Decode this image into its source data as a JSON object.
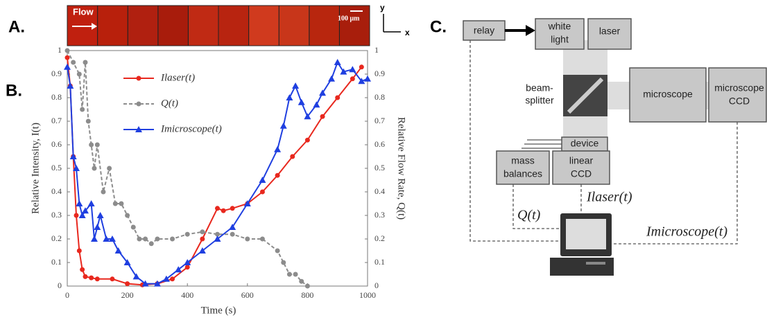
{
  "panel_labels": [
    "A.",
    "B.",
    "C."
  ],
  "image_strip": {
    "flow_label": "Flow",
    "scale_label": "100 μm",
    "axis_y": "y",
    "axis_x": "x"
  },
  "chart_data": {
    "type": "line",
    "xlabel": "Time (s)",
    "ylabel": "Relative Intensity, I(t)",
    "y2label": "Relative Flow Rate, Q(t)",
    "xlim": [
      0,
      1000
    ],
    "xticks": [
      0,
      200,
      400,
      600,
      800,
      1000
    ],
    "ylim": [
      0,
      1
    ],
    "yticks": [
      0,
      0.1,
      0.2,
      0.3,
      0.4,
      0.5,
      0.6,
      0.7,
      0.8,
      0.9,
      1
    ],
    "y2lim": [
      0,
      1
    ],
    "y2ticks": [
      0,
      0.1,
      0.2,
      0.3,
      0.4,
      0.5,
      0.6,
      0.7,
      0.8,
      0.9,
      1
    ],
    "series": [
      {
        "name": "Ilaser(t)",
        "color": "#e8281e",
        "marker": "circle",
        "dashed": false,
        "x": [
          0,
          10,
          20,
          30,
          40,
          50,
          60,
          80,
          100,
          150,
          200,
          250,
          300,
          350,
          400,
          450,
          500,
          520,
          550,
          600,
          650,
          700,
          750,
          800,
          850,
          900,
          950,
          980
        ],
        "values": [
          0.97,
          0.85,
          0.55,
          0.3,
          0.15,
          0.07,
          0.04,
          0.035,
          0.03,
          0.03,
          0.01,
          0.005,
          0.01,
          0.03,
          0.08,
          0.2,
          0.33,
          0.32,
          0.33,
          0.35,
          0.4,
          0.47,
          0.55,
          0.62,
          0.72,
          0.8,
          0.88,
          0.93
        ]
      },
      {
        "name": "Q(t)",
        "color": "#8c8c8c",
        "marker": "circle",
        "dashed": true,
        "axis": "y2",
        "x": [
          0,
          20,
          40,
          50,
          60,
          70,
          80,
          90,
          100,
          120,
          140,
          160,
          180,
          200,
          220,
          240,
          260,
          280,
          300,
          350,
          400,
          450,
          500,
          550,
          600,
          650,
          700,
          720,
          740,
          760,
          780,
          800
        ],
        "values": [
          1,
          0.95,
          0.9,
          0.75,
          0.95,
          0.7,
          0.6,
          0.5,
          0.6,
          0.4,
          0.5,
          0.35,
          0.35,
          0.3,
          0.25,
          0.2,
          0.2,
          0.18,
          0.2,
          0.2,
          0.22,
          0.23,
          0.22,
          0.22,
          0.2,
          0.2,
          0.15,
          0.1,
          0.05,
          0.05,
          0.02,
          0
        ]
      },
      {
        "name": "Imicroscope(t)",
        "color": "#1f3fe0",
        "marker": "triangle",
        "dashed": false,
        "x": [
          0,
          10,
          20,
          30,
          40,
          50,
          60,
          80,
          90,
          100,
          110,
          130,
          150,
          170,
          200,
          230,
          260,
          300,
          330,
          370,
          400,
          450,
          500,
          550,
          600,
          650,
          700,
          720,
          740,
          760,
          780,
          800,
          830,
          850,
          880,
          900,
          920,
          950,
          980,
          1000
        ],
        "values": [
          0.93,
          0.85,
          0.55,
          0.5,
          0.35,
          0.3,
          0.32,
          0.35,
          0.2,
          0.25,
          0.3,
          0.2,
          0.2,
          0.15,
          0.1,
          0.04,
          0.01,
          0.01,
          0.03,
          0.07,
          0.1,
          0.15,
          0.2,
          0.25,
          0.35,
          0.45,
          0.58,
          0.68,
          0.8,
          0.85,
          0.78,
          0.72,
          0.77,
          0.82,
          0.88,
          0.95,
          0.91,
          0.92,
          0.87,
          0.88
        ]
      }
    ]
  },
  "diagram": {
    "nodes": [
      {
        "label": [
          "relay"
        ]
      },
      {
        "label": [
          "white",
          "light"
        ]
      },
      {
        "label": [
          "laser"
        ]
      },
      {
        "label": [
          "beam-",
          "splitter"
        ]
      },
      {
        "label": [
          "microscope"
        ]
      },
      {
        "label": [
          "microscope",
          "CCD"
        ]
      },
      {
        "label": [
          "device"
        ]
      },
      {
        "label": [
          "mass",
          "balances"
        ]
      },
      {
        "label": [
          "linear",
          "CCD"
        ]
      }
    ],
    "signals": [
      "Ilaser(t)",
      "Q(t)",
      "Imicroscope(t)"
    ]
  }
}
